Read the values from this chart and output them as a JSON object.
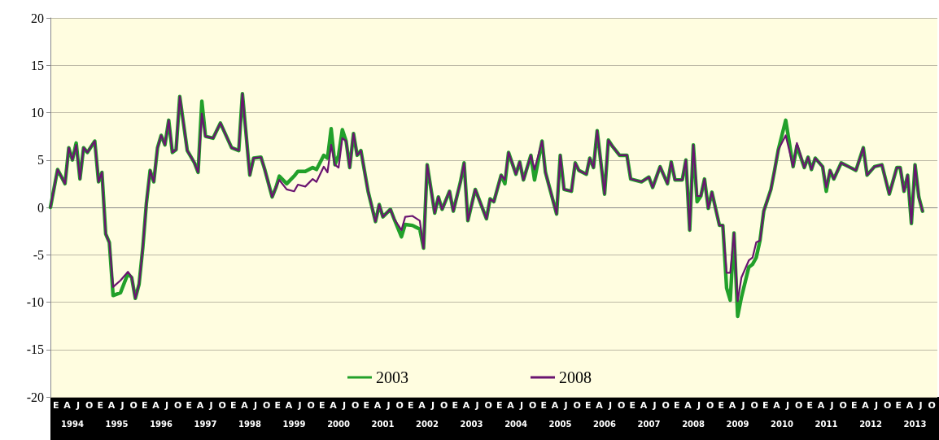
{
  "chart_data": {
    "type": "line",
    "xlim": [
      "1994-01",
      "2014-01"
    ],
    "xticks": [
      {
        "value": "1994-07",
        "label": "1994"
      },
      {
        "value": "1995-07",
        "label": "1995"
      },
      {
        "value": "1996-07",
        "label": "1996"
      },
      {
        "value": "1997-07",
        "label": "1997"
      },
      {
        "value": "1998-07",
        "label": "1998"
      },
      {
        "value": "1999-07",
        "label": "1999"
      },
      {
        "value": "2000-07",
        "label": "2000"
      },
      {
        "value": "2001-07",
        "label": "2001"
      },
      {
        "value": "2002-07",
        "label": "2002"
      },
      {
        "value": "2003-07",
        "label": "2003"
      },
      {
        "value": "2004-07",
        "label": "2004"
      },
      {
        "value": "2005-07",
        "label": "2005"
      },
      {
        "value": "2006-07",
        "label": "2006"
      },
      {
        "value": "2007-07",
        "label": "2007"
      },
      {
        "value": "2008-07",
        "label": "2008"
      },
      {
        "value": "2009-07",
        "label": "2009"
      },
      {
        "value": "2010-07",
        "label": "2010"
      },
      {
        "value": "2011-07",
        "label": "2011"
      },
      {
        "value": "2012-07",
        "label": "2012"
      },
      {
        "value": "2013-07",
        "label": "2013"
      }
    ],
    "annotations": [
      "E",
      "A",
      "J",
      "O",
      "E",
      "A",
      "J",
      "O",
      "E",
      "A",
      "J",
      "O",
      "E",
      "A",
      "J",
      "O",
      "E",
      "A",
      "J",
      "O",
      "E",
      "A",
      "J",
      "O",
      "E",
      "A",
      "J",
      "O",
      "E",
      "A",
      "J",
      "O",
      "E",
      "A",
      "J",
      "O",
      "E",
      "A",
      "J",
      "O",
      "E",
      "A",
      "J",
      "O",
      "E",
      "A",
      "J",
      "O",
      "E",
      "A",
      "J",
      "O",
      "E",
      "A",
      "J",
      "O",
      "E",
      "A",
      "J",
      "O",
      "E",
      "A",
      "J",
      "O",
      "E",
      "A",
      "J",
      "O",
      "E",
      "A",
      "J",
      "O",
      "E",
      "A",
      "J",
      "O",
      "E",
      "A",
      "J",
      "O"
    ],
    "ylim": [
      -20,
      20
    ],
    "yticks": [
      -20,
      -15,
      -10,
      -5,
      0,
      5,
      10,
      15,
      20
    ],
    "grid": "y",
    "legend": "bottom",
    "marker": "none",
    "line_style": "solid",
    "x": [
      "1994-01",
      "1994-03",
      "1994-05",
      "1994-06",
      "1994-07",
      "1994-08",
      "1994-09",
      "1994-10",
      "1994-11",
      "1995-01",
      "1995-02",
      "1995-03",
      "1995-04",
      "1995-05",
      "1995-06",
      "1995-08",
      "1995-10",
      "1995-11",
      "1995-12",
      "1996-01",
      "1996-02",
      "1996-03",
      "1996-04",
      "1996-05",
      "1996-06",
      "1996-07",
      "1996-08",
      "1996-09",
      "1996-10",
      "1996-11",
      "1996-12",
      "1997-02",
      "1997-04",
      "1997-05",
      "1997-06",
      "1997-07",
      "1997-09",
      "1997-11",
      "1998-02",
      "1998-04",
      "1998-05",
      "1998-07",
      "1998-08",
      "1998-10",
      "1998-11",
      "1999-01",
      "1999-02",
      "1999-03",
      "1999-05",
      "1999-07",
      "1999-08",
      "1999-10",
      "1999-12",
      "2000-01",
      "2000-03",
      "2000-04",
      "2000-05",
      "2000-06",
      "2000-07",
      "2000-08",
      "2000-09",
      "2000-10",
      "2000-11",
      "2000-12",
      "2001-01",
      "2001-03",
      "2001-05",
      "2001-06",
      "2001-07",
      "2001-09",
      "2001-10",
      "2001-12",
      "2002-01",
      "2002-03",
      "2002-05",
      "2002-06",
      "2002-07",
      "2002-09",
      "2002-10",
      "2002-11",
      "2003-01",
      "2003-02",
      "2003-04",
      "2003-05",
      "2003-06",
      "2003-08",
      "2003-11",
      "2003-12",
      "2004-01",
      "2004-03",
      "2004-04",
      "2004-05",
      "2004-07",
      "2004-08",
      "2004-09",
      "2004-11",
      "2004-12",
      "2005-02",
      "2005-03",
      "2005-06",
      "2005-07",
      "2005-08",
      "2005-10",
      "2005-11",
      "2005-12",
      "2006-02",
      "2006-03",
      "2006-04",
      "2006-05",
      "2006-07",
      "2006-08",
      "2006-09",
      "2006-11",
      "2007-01",
      "2007-02",
      "2007-05",
      "2007-07",
      "2007-08",
      "2007-10",
      "2007-12",
      "2008-01",
      "2008-02",
      "2008-04",
      "2008-05",
      "2008-06",
      "2008-07",
      "2008-08",
      "2008-09",
      "2008-10",
      "2008-11",
      "2008-12",
      "2009-02",
      "2009-03",
      "2009-04",
      "2009-05",
      "2009-06",
      "2009-07",
      "2009-08",
      "2009-10",
      "2009-11",
      "2009-12",
      "2010-01",
      "2010-02",
      "2010-04",
      "2010-05",
      "2010-06",
      "2010-08",
      "2010-10",
      "2010-11",
      "2011-01",
      "2011-02",
      "2011-03",
      "2011-04",
      "2011-06",
      "2011-07",
      "2011-08",
      "2011-09",
      "2011-11",
      "2012-01",
      "2012-03",
      "2012-05",
      "2012-06",
      "2012-08",
      "2012-10",
      "2012-12",
      "2013-02",
      "2013-03",
      "2013-04",
      "2013-05",
      "2013-06",
      "2013-07",
      "2013-08",
      "2013-09"
    ],
    "series": [
      {
        "name": "2003",
        "color": "#22a02a",
        "values": [
          0,
          4.0,
          2.5,
          6.3,
          5,
          6.8,
          3,
          6.3,
          5.8,
          7,
          2.7,
          3.7,
          -2.8,
          -3.7,
          -9.3,
          -9.0,
          -7.0,
          -7.4,
          -9.6,
          -8.1,
          -4.2,
          0.4,
          3.9,
          2.7,
          6.3,
          7.6,
          6.6,
          9.2,
          5.8,
          6.1,
          11.7,
          6,
          4.7,
          3.7,
          11.2,
          7.5,
          7.3,
          8.9,
          6.3,
          6,
          12,
          3.4,
          5.2,
          5.3,
          4,
          1.1,
          2.1,
          3.3,
          2.5,
          3.3,
          3.8,
          3.8,
          4.2,
          4.0,
          5.5,
          5.2,
          8.3,
          4.5,
          5.5,
          8.2,
          7,
          4.2,
          7.8,
          5.5,
          6,
          1.7,
          -1.5,
          0.3,
          -1,
          -0.2,
          -1.2,
          -3.1,
          -1.8,
          -1.9,
          -2.3,
          -4.3,
          4.5,
          -0.6,
          1.1,
          -0.2,
          1.7,
          -0.4,
          2.7,
          4.7,
          -1.4,
          1.9,
          -1.2,
          0.9,
          0.6,
          3.4,
          2.5,
          5.8,
          3.5,
          4.8,
          2.9,
          5.5,
          2.9,
          7,
          3.7,
          -0.7,
          5.5,
          1.9,
          1.7,
          4.7,
          3.9,
          3.5,
          5.2,
          4.2,
          8.1,
          1.4,
          7.1,
          6.5,
          5.5,
          5.5,
          3,
          2.7,
          3.2,
          2.1,
          4.3,
          2.5,
          4.8,
          2.9,
          2.9,
          5,
          -2.4,
          6.6,
          0.6,
          1.2,
          3,
          -0.1,
          1.6,
          -1.9,
          -1.9,
          -8.5,
          -9.8,
          -2.7,
          -11.5,
          -9.5,
          -6.3,
          -6.0,
          -5.3,
          -3.5,
          -0.4,
          1.9,
          3.9,
          6.1,
          9.2,
          4.3,
          6.5,
          4.2,
          5.3,
          4,
          5.2,
          4.3,
          1.7,
          3.9,
          3,
          4.7,
          4.3,
          3.9,
          6.3,
          3.4,
          4.3,
          4.5,
          1.4,
          4.2,
          4.2,
          1.7,
          3.4,
          -1.7,
          4.5,
          1.1,
          -0.4
        ]
      },
      {
        "name": "2008",
        "color": "#6a1470",
        "values": [
          0,
          4.0,
          2.5,
          6.3,
          5,
          6.6,
          3,
          6.3,
          5.8,
          7,
          2.7,
          3.7,
          -2.8,
          -3.7,
          -8.4,
          -7.7,
          -6.8,
          -7.4,
          -9.6,
          -8.1,
          -4.2,
          0.4,
          3.9,
          2.7,
          6.3,
          7.6,
          6.6,
          9.2,
          5.8,
          6.1,
          11.7,
          6,
          4.7,
          3.7,
          9.9,
          7.5,
          7.3,
          8.9,
          6.3,
          6,
          12,
          3.4,
          5.2,
          5.3,
          4,
          1.1,
          2.1,
          2.9,
          1.9,
          1.7,
          2.4,
          2.2,
          3,
          2.7,
          4.3,
          3.7,
          6.6,
          4.5,
          4.2,
          7.3,
          7,
          4.2,
          7.8,
          5.5,
          6,
          1.7,
          -1.5,
          0.3,
          -1,
          -0.2,
          -1.2,
          -2.4,
          -1,
          -0.9,
          -1.4,
          -4.3,
          4.5,
          -0.6,
          1.1,
          -0.2,
          1.7,
          -0.4,
          2.7,
          4.7,
          -1.4,
          1.9,
          -1.2,
          0.9,
          0.6,
          3.4,
          2.9,
          5.8,
          3.5,
          4.8,
          2.9,
          5.5,
          4.0,
          7,
          3.7,
          -0.7,
          5.5,
          1.9,
          1.7,
          4.7,
          3.9,
          3.5,
          5.2,
          4.2,
          8.1,
          1.4,
          7.1,
          6.5,
          5.5,
          5.5,
          3,
          2.7,
          3.2,
          2.1,
          4.3,
          2.5,
          4.8,
          2.9,
          2.9,
          5,
          -2.4,
          6.6,
          1.2,
          1.2,
          3,
          -0.1,
          1.6,
          -1.9,
          -1.9,
          -6.9,
          -6.9,
          -2.7,
          -9.9,
          -7.4,
          -5.6,
          -5.3,
          -3.7,
          -3.5,
          -0.4,
          1.9,
          3.9,
          6.1,
          7.6,
          4.3,
          6.8,
          4.2,
          5.3,
          4,
          5.2,
          4.3,
          2.1,
          3.9,
          3,
          4.7,
          4.3,
          3.9,
          6.3,
          3.4,
          4.3,
          4.5,
          1.4,
          4.2,
          4.2,
          1.7,
          3.4,
          -1.7,
          4.5,
          1.1,
          -0.4
        ]
      }
    ]
  }
}
